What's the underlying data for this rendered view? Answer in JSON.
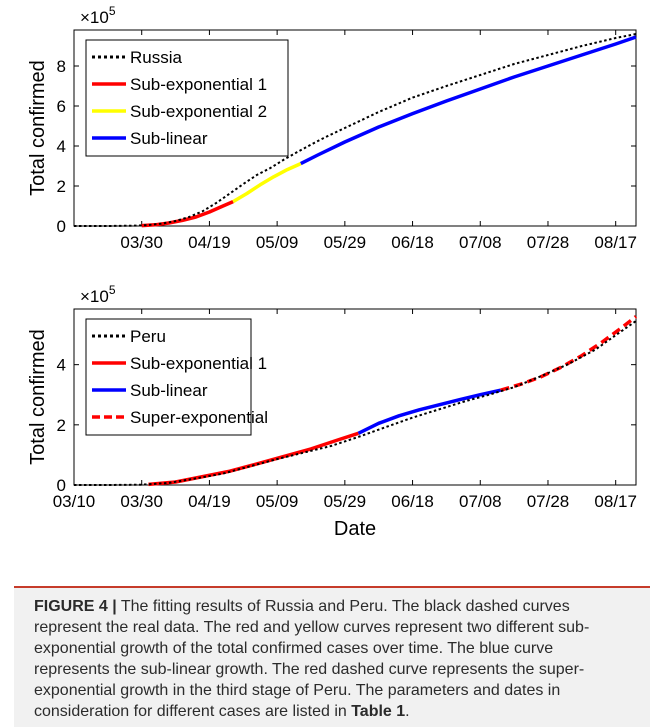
{
  "figure": {
    "caption": {
      "label": "FIGURE 4 |",
      "text_before": " The fitting results of Russia and Peru. The black dashed curves represent the real data. The red and yellow curves represent two different sub-exponential growth of the total confirmed cases over time. The blue curve represents the sub-linear growth. The red dashed curve represents the super-exponential growth in the third stage of Peru. The parameters and dates in consideration for different cases are listed in ",
      "table_ref": "Table 1",
      "text_after": "."
    }
  },
  "chart_data": [
    {
      "type": "line",
      "panel": "Russia",
      "title": "",
      "xlabel": "",
      "ylabel": "Total confirmed",
      "exponent_label": "×10",
      "exponent_power": "5",
      "x_start": "03/10",
      "x_end": "08/23",
      "xlim": [
        0,
        166
      ],
      "ylim": [
        0,
        9.8
      ],
      "x_ticks": [
        "03/30",
        "04/19",
        "05/09",
        "05/29",
        "06/18",
        "07/08",
        "07/28",
        "08/17"
      ],
      "x_tick_days": [
        20,
        40,
        60,
        80,
        100,
        120,
        140,
        160
      ],
      "y_ticks": [
        "0",
        "2",
        "4",
        "6",
        "8"
      ],
      "y_tick_values": [
        0,
        2,
        4,
        6,
        8
      ],
      "legend_position": "top-left",
      "grid": false,
      "series": [
        {
          "name": "Russia",
          "color": "#000000",
          "style": "dotted",
          "x_days": [
            0,
            10,
            19,
            22,
            26,
            30,
            34,
            38,
            42,
            46,
            50,
            54,
            58,
            62,
            66,
            70,
            74,
            80,
            90,
            100,
            110,
            120,
            130,
            140,
            150,
            160,
            166
          ],
          "y": [
            0,
            0,
            0.02,
            0.05,
            0.12,
            0.25,
            0.45,
            0.74,
            1.15,
            1.62,
            2.1,
            2.55,
            2.9,
            3.32,
            3.7,
            4.07,
            4.42,
            4.9,
            5.7,
            6.42,
            7.0,
            7.55,
            8.1,
            8.55,
            9.0,
            9.4,
            9.6
          ]
        },
        {
          "name": "Sub-exponential 1",
          "color": "#ff0000",
          "style": "solid",
          "x_days": [
            20,
            24,
            28,
            32,
            36,
            40,
            44,
            47
          ],
          "y": [
            0.02,
            0.06,
            0.15,
            0.28,
            0.45,
            0.7,
            1.0,
            1.22
          ]
        },
        {
          "name": "Sub-exponential 2",
          "color": "#ffff00",
          "style": "solid",
          "x_days": [
            47,
            51,
            55,
            59,
            63,
            67
          ],
          "y": [
            1.22,
            1.62,
            2.06,
            2.46,
            2.82,
            3.12
          ]
        },
        {
          "name": "Sub-linear",
          "color": "#0000ff",
          "style": "solid",
          "x_days": [
            67,
            72,
            80,
            90,
            100,
            110,
            120,
            130,
            140,
            150,
            160,
            166
          ],
          "y": [
            3.12,
            3.55,
            4.2,
            4.95,
            5.62,
            6.25,
            6.85,
            7.45,
            8.0,
            8.55,
            9.1,
            9.45
          ]
        }
      ]
    },
    {
      "type": "line",
      "panel": "Peru",
      "title": "",
      "xlabel": "Date",
      "ylabel": "Total confirmed",
      "exponent_label": "×10",
      "exponent_power": "5",
      "x_start": "03/10",
      "x_end": "08/23",
      "xlim": [
        0,
        166
      ],
      "ylim": [
        0,
        5.85
      ],
      "x_ticks": [
        "03/10",
        "03/30",
        "04/19",
        "05/09",
        "05/29",
        "06/18",
        "07/08",
        "07/28",
        "08/17"
      ],
      "x_tick_days": [
        0,
        20,
        40,
        60,
        80,
        100,
        120,
        140,
        160
      ],
      "y_ticks": [
        "0",
        "2",
        "4"
      ],
      "y_tick_values": [
        0,
        2,
        4
      ],
      "legend_position": "top-left",
      "grid": false,
      "series": [
        {
          "name": "Peru",
          "color": "#000000",
          "style": "dotted",
          "x_days": [
            0,
            10,
            20,
            28,
            36,
            44,
            52,
            60,
            68,
            76,
            84,
            92,
            100,
            108,
            116,
            122,
            130,
            138,
            146,
            154,
            160,
            166
          ],
          "y": [
            0,
            0,
            0.01,
            0.07,
            0.22,
            0.38,
            0.62,
            0.86,
            1.08,
            1.3,
            1.6,
            1.92,
            2.24,
            2.52,
            2.8,
            2.98,
            3.25,
            3.62,
            4.02,
            4.5,
            4.98,
            5.45
          ]
        },
        {
          "name": "Sub-exponential 1",
          "color": "#ff0000",
          "style": "solid",
          "x_days": [
            22,
            30,
            38,
            46,
            54,
            62,
            70,
            78,
            84
          ],
          "y": [
            0.02,
            0.1,
            0.28,
            0.46,
            0.7,
            0.95,
            1.2,
            1.5,
            1.72
          ]
        },
        {
          "name": "Sub-linear",
          "color": "#0000ff",
          "style": "solid",
          "x_days": [
            84,
            90,
            96,
            102,
            108,
            114,
            120,
            126
          ],
          "y": [
            1.72,
            2.05,
            2.3,
            2.5,
            2.67,
            2.84,
            3.0,
            3.15
          ]
        },
        {
          "name": "Super-exponential",
          "color": "#ff0000",
          "style": "dashed",
          "x_days": [
            126,
            132,
            138,
            144,
            150,
            156,
            162,
            166
          ],
          "y": [
            3.15,
            3.35,
            3.6,
            3.92,
            4.3,
            4.75,
            5.25,
            5.6
          ]
        }
      ]
    }
  ]
}
